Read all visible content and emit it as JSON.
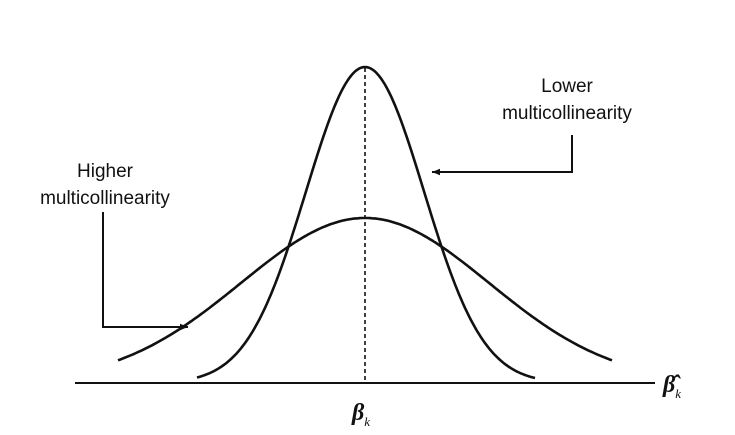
{
  "labels": {
    "lower": [
      "Lower",
      "multicollinearity"
    ],
    "higher": [
      "Higher",
      "multicollinearity"
    ]
  },
  "axis_label": {
    "symbol": "β̂",
    "subscript": "k"
  },
  "center_label": {
    "symbol": "β",
    "subscript": "k"
  }
}
